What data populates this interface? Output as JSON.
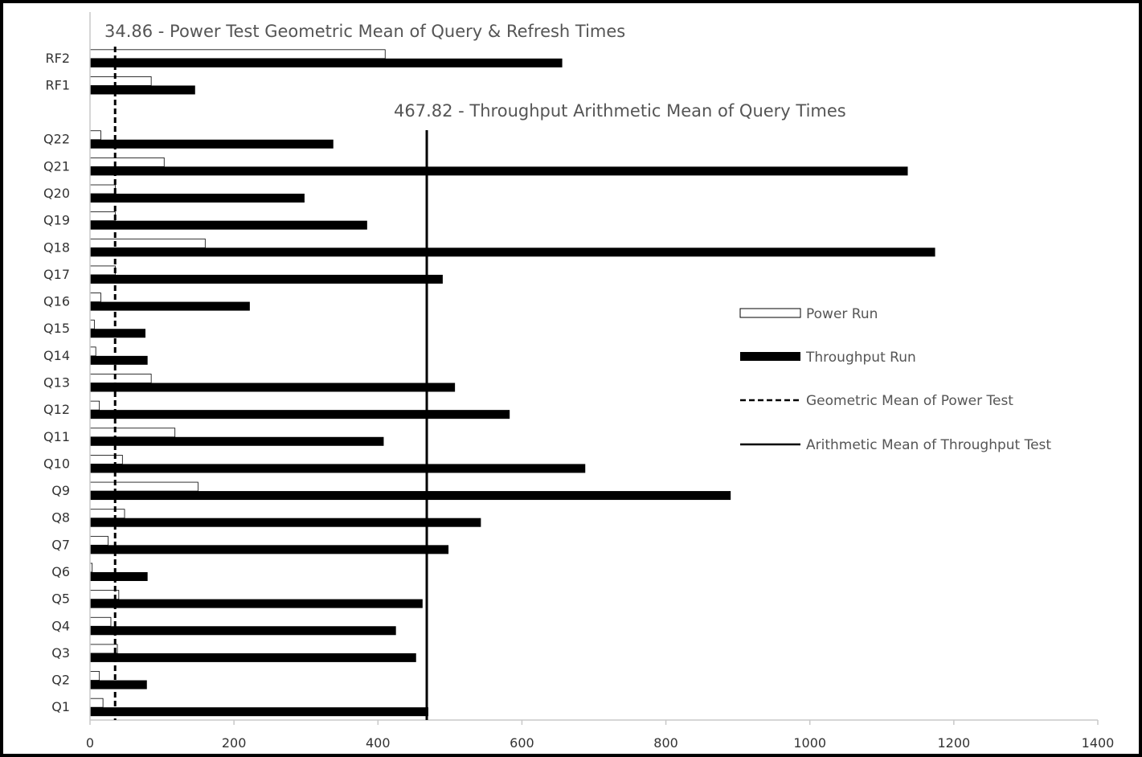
{
  "chart_data": {
    "type": "bar",
    "orientation": "horizontal",
    "title": "",
    "xlabel": "",
    "ylabel": "",
    "xlim": [
      0,
      1400
    ],
    "x_ticks": [
      0,
      200,
      400,
      600,
      800,
      1000,
      1200,
      1400
    ],
    "grid": false,
    "legend_position": "right",
    "categories": [
      "RF2",
      "RF1",
      "",
      "Q22",
      "Q21",
      "Q20",
      "Q19",
      "Q18",
      "Q17",
      "Q16",
      "Q15",
      "Q14",
      "Q13",
      "Q12",
      "Q11",
      "Q10",
      "Q9",
      "Q8",
      "Q7",
      "Q6",
      "Q5",
      "Q4",
      "Q3",
      "Q2",
      "Q1"
    ],
    "series": [
      {
        "name": "Power Run",
        "fill": "#ffffff",
        "stroke": "#000000",
        "values": [
          410,
          85,
          null,
          15,
          103,
          35,
          35,
          160,
          35,
          15,
          6,
          8,
          85,
          13,
          118,
          45,
          150,
          48,
          25,
          3,
          40,
          29,
          38,
          13,
          18
        ]
      },
      {
        "name": "Throughput Run",
        "fill": "#000000",
        "stroke": "#000000",
        "values": [
          656,
          146,
          null,
          338,
          1136,
          298,
          385,
          1174,
          490,
          222,
          77,
          80,
          507,
          583,
          408,
          688,
          890,
          543,
          498,
          80,
          462,
          425,
          453,
          79,
          470
        ]
      }
    ],
    "reference_lines": [
      {
        "name": "Geometric Mean of Power Test",
        "value": 34.86,
        "style": "dashed",
        "label": "34.86 - Power Test Geometric Mean of Query & Refresh Times"
      },
      {
        "name": "Arithmetic Mean of Throughput Test",
        "value": 467.82,
        "style": "solid",
        "label": "467.82 - Throughput Arithmetic Mean of Query Times"
      }
    ]
  }
}
